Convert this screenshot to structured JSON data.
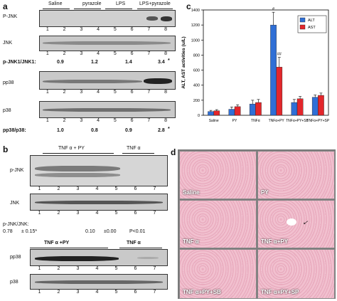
{
  "panel_a": {
    "letter": "a",
    "groups": [
      "Saline",
      "pyrazole",
      "LPS",
      "LPS+pyrazole"
    ],
    "rows": [
      "P-JNK",
      "JNK",
      "pp38",
      "p38"
    ],
    "lanes": [
      "1",
      "2",
      "3",
      "4",
      "5",
      "6",
      "7",
      "8"
    ],
    "ratio1_label": "p-JNK1/JNK1:",
    "ratio1_values": [
      "0.9",
      "1.2",
      "1.4",
      "3.4"
    ],
    "ratio1_mark": "*",
    "ratio2_label": "pp38/p38:",
    "ratio2_values": [
      "1.0",
      "0.8",
      "0.9",
      "2.8"
    ],
    "ratio2_mark": "*"
  },
  "panel_b": {
    "letter": "b",
    "groups": [
      "TNF α + PY",
      "TNF α"
    ],
    "groups2": [
      "TNF α +PY",
      "TNF α"
    ],
    "rows": [
      "p-JNK",
      "JNK",
      "pp38",
      "p38"
    ],
    "lanes_top": [
      "1",
      "2",
      "3",
      "4",
      "5",
      "6",
      "7"
    ],
    "ratio_label": "p-JNK/JNK:",
    "ratio_values": [
      "0.78",
      "± 0.15*",
      "0.10",
      "±0.00",
      "P<0.01"
    ]
  },
  "panel_c": {
    "letter": "c",
    "ylabel": "ALT, AST activities (u/L)",
    "legend": [
      "ALT",
      "AST"
    ]
  },
  "chart_data": {
    "type": "bar",
    "title": "",
    "xlabel": "",
    "ylabel": "ALT, AST activities (u/L)",
    "ylim": [
      0,
      1400
    ],
    "yticks": [
      0,
      200,
      400,
      600,
      800,
      1000,
      1200,
      1400
    ],
    "categories": [
      "Saline",
      "PY",
      "TNFα",
      "TNFα+PY",
      "TNFα+PY+SB",
      "TNFα+PY+SP"
    ],
    "series": [
      {
        "name": "ALT",
        "values": [
          50,
          80,
          150,
          1200,
          170,
          240
        ],
        "errors": [
          15,
          30,
          50,
          170,
          40,
          30
        ],
        "color": "#2f6fd6"
      },
      {
        "name": "AST",
        "values": [
          60,
          115,
          170,
          640,
          220,
          265
        ],
        "errors": [
          15,
          25,
          40,
          130,
          30,
          30
        ],
        "color": "#e3262b"
      }
    ],
    "annotations": [
      "#",
      "##"
    ],
    "legend_position": "top-right",
    "grid": false
  },
  "panel_d": {
    "letter": "d",
    "images": [
      "Saline",
      "PY",
      "TNF α",
      "TNF α+PY",
      "TNF α+PY+SB",
      "TNF α+PY+SP"
    ]
  }
}
